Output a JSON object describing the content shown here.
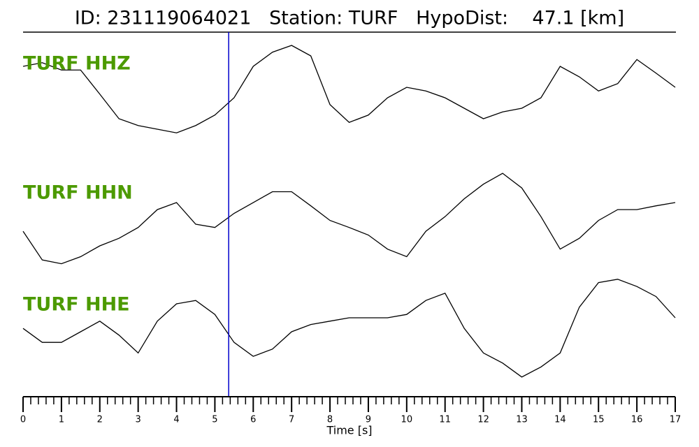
{
  "chart_data": {
    "type": "line",
    "title": "ID: 231119064021   Station: TURF   HypoDist:    47.1 [km]",
    "x_label": "Time [s]",
    "xlim": [
      0,
      17
    ],
    "xticks": [
      0,
      1,
      2,
      3,
      4,
      5,
      6,
      7,
      8,
      9,
      10,
      11,
      12,
      13,
      14,
      15,
      16,
      17
    ],
    "xminor_step": 0.2,
    "ylim": [
      -1,
      1
    ],
    "label_color": "#4c9a00",
    "markers": [
      {
        "x": 5.36,
        "color": "#0000cc"
      }
    ],
    "x": [
      0,
      0.5,
      1,
      1.5,
      2,
      2.5,
      3,
      3.5,
      4,
      4.5,
      5,
      5.5,
      6,
      6.5,
      7,
      7.5,
      8,
      8.5,
      9,
      9.5,
      10,
      10.5,
      11,
      11.5,
      12,
      12.5,
      13,
      13.5,
      14,
      14.5,
      15,
      15.5,
      16,
      16.5,
      17
    ],
    "series": [
      {
        "name": "TURF HHZ",
        "color": "#000000",
        "values": [
          0.4,
          0.47,
          0.33,
          0.33,
          -0.13,
          -0.6,
          -0.73,
          -0.8,
          -0.87,
          -0.73,
          -0.53,
          -0.2,
          0.4,
          0.67,
          0.8,
          0.6,
          -0.33,
          -0.67,
          -0.53,
          -0.2,
          0,
          -0.07,
          -0.2,
          -0.4,
          -0.6,
          -0.47,
          -0.4,
          -0.2,
          0.4,
          0.2,
          -0.07,
          0.07,
          0.53,
          0.27,
          0
        ]
      },
      {
        "name": "TURF HHN",
        "color": "#000000",
        "values": [
          -0.24,
          -0.77,
          -0.84,
          -0.71,
          -0.51,
          -0.37,
          -0.17,
          0.16,
          0.29,
          -0.11,
          -0.17,
          0.09,
          0.29,
          0.49,
          0.49,
          0.23,
          -0.04,
          -0.17,
          -0.31,
          -0.57,
          -0.71,
          -0.24,
          0.03,
          0.36,
          0.63,
          0.83,
          0.56,
          0.03,
          -0.57,
          -0.37,
          -0.04,
          0.16,
          0.16,
          0.23,
          0.29
        ]
      },
      {
        "name": "TURF HHE",
        "color": "#000000",
        "values": [
          0.06,
          -0.19,
          -0.19,
          0,
          0.19,
          -0.06,
          -0.38,
          0.19,
          0.5,
          0.56,
          0.31,
          -0.19,
          -0.44,
          -0.31,
          0,
          0.13,
          0.19,
          0.25,
          0.25,
          0.25,
          0.31,
          0.56,
          0.69,
          0.06,
          -0.38,
          -0.56,
          -0.81,
          -0.63,
          -0.38,
          0.44,
          0.88,
          0.94,
          0.81,
          0.63,
          0.25
        ]
      }
    ]
  }
}
